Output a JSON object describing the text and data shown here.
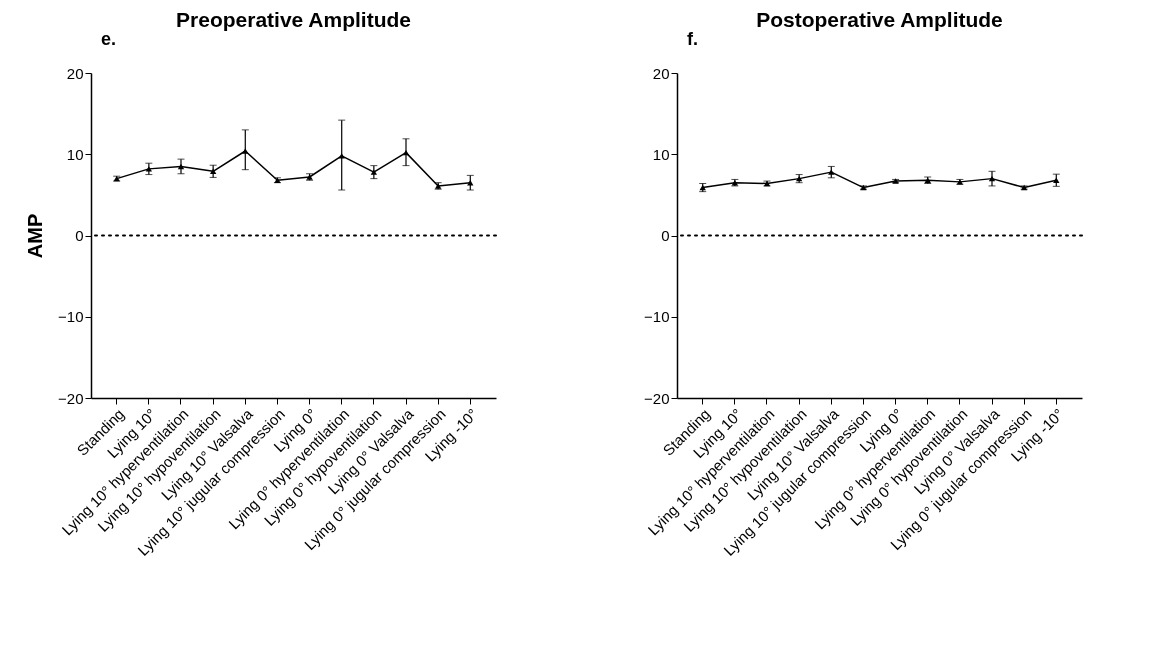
{
  "chart_data": [
    {
      "type": "line",
      "title": "Preoperative Amplitude",
      "ylabel": "AMP",
      "annotations": [
        "e."
      ],
      "categories": [
        "Standing",
        "Lying 10°",
        "Lying 10° hyperventilation",
        "Lying 10° hypoventilation",
        "Lying 10° Valsalva",
        "Lying 10° jugular compression",
        "Lying 0°",
        "Lying 0° hyperventilation",
        "Lying 0° hypoventilation",
        "Lying 0° Valsalva",
        "Lying 0° jugular compression",
        "Lying -10°"
      ],
      "series": [
        {
          "color": "#000000",
          "values": [
            7.0,
            8.2,
            8.5,
            7.9,
            10.4,
            6.8,
            7.2,
            9.8,
            7.8,
            10.2,
            6.1,
            6.5
          ],
          "errors": [
            0.3,
            0.7,
            0.9,
            0.75,
            [
              8.1,
              13.0
            ],
            0.3,
            0.4,
            [
              5.6,
              14.2
            ],
            0.8,
            [
              8.6,
              11.9
            ],
            0.4,
            0.9
          ]
        }
      ],
      "ylim": [
        -20,
        20
      ],
      "yticks": [
        -20,
        -10,
        0,
        10,
        20
      ],
      "grid": false,
      "marker": "triangle",
      "line_style": "solid",
      "ref_lines": [
        {
          "axis": "y",
          "value": 0,
          "label": null,
          "line_style": "dotted",
          "color": "#000000"
        }
      ]
    },
    {
      "type": "line",
      "title": "Postoperative Amplitude",
      "annotations": [
        "f."
      ],
      "categories": [
        "Standing",
        "Lying 10°",
        "Lying 10° hyperventilation",
        "Lying 10° hypoventilation",
        "Lying 10° Valsalva",
        "Lying 10° jugular compression",
        "Lying 0°",
        "Lying 0° hyperventilation",
        "Lying 0° hypoventilation",
        "Lying 0° Valsalva",
        "Lying 0° jugular compression",
        "Lying -10°"
      ],
      "series": [
        {
          "color": "#000000",
          "values": [
            5.9,
            6.5,
            6.4,
            7.0,
            7.8,
            5.9,
            6.7,
            6.8,
            6.6,
            7.0,
            5.9,
            6.8
          ],
          "errors": [
            0.5,
            0.4,
            0.3,
            0.5,
            0.7,
            0.2,
            0.2,
            0.4,
            0.3,
            0.9,
            0.2,
            0.75
          ]
        }
      ],
      "ylim": [
        -20,
        20
      ],
      "yticks": [
        -20,
        -10,
        0,
        10,
        20
      ],
      "grid": false,
      "marker": "triangle",
      "line_style": "solid",
      "ref_lines": [
        {
          "axis": "y",
          "value": 0,
          "label": null,
          "line_style": "dotted",
          "color": "#000000"
        }
      ]
    }
  ]
}
